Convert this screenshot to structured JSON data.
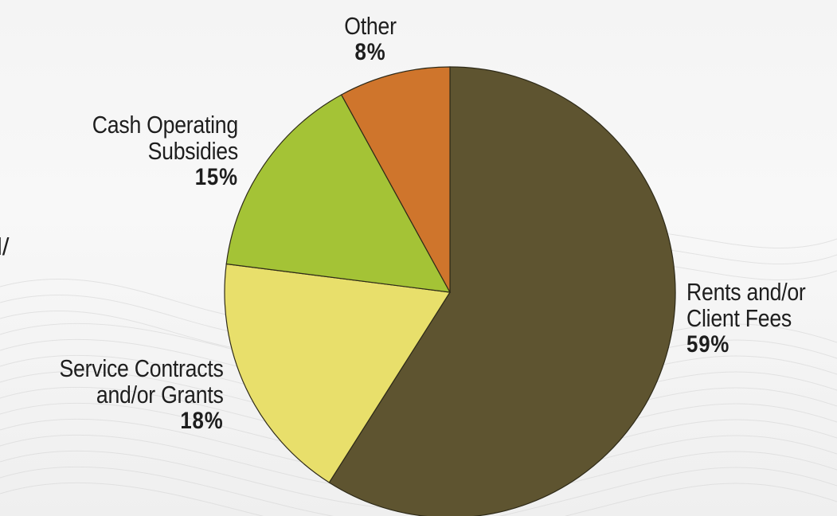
{
  "chart_data": {
    "type": "pie",
    "title": "",
    "start_angle_deg": 0,
    "direction": "clockwise",
    "slices": [
      {
        "name_lines": [
          "Rents and/or",
          "Client Fees"
        ],
        "label": "59%",
        "value": 59,
        "color": "#5e5430"
      },
      {
        "name_lines": [
          "Service Contracts",
          "and/or Grants"
        ],
        "label": "18%",
        "value": 18,
        "color": "#e8df6b"
      },
      {
        "name_lines": [
          "Cash Operating",
          "Subsidies"
        ],
        "label": "15%",
        "value": 15,
        "color": "#a4c336"
      },
      {
        "name_lines": [
          "Other"
        ],
        "label": "8%",
        "value": 8,
        "color": "#cf752c"
      }
    ]
  },
  "edge_text": "l/"
}
